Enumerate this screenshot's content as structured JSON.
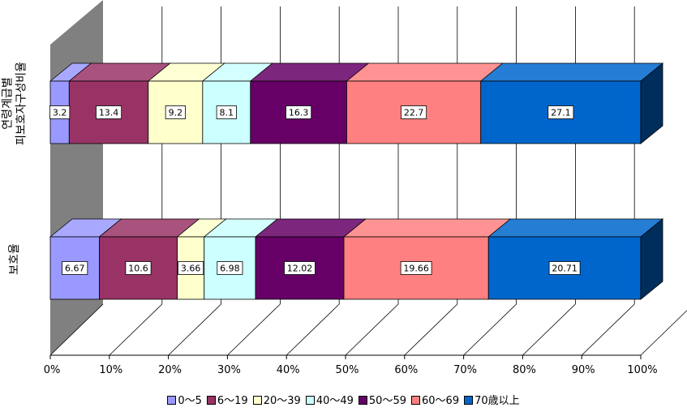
{
  "chart_data": {
    "type": "bar",
    "orientation": "horizontal",
    "stacked": true,
    "percent": true,
    "three_d": true,
    "categories": [
      "연령계급별 피보호자구성비율",
      "보호율"
    ],
    "category_lines": [
      [
        "연령계급별",
        "피보호자구성비율"
      ],
      [
        "보호율"
      ]
    ],
    "series": [
      {
        "name": "0～5",
        "color": "#9999ff",
        "values": [
          3.2,
          6.67
        ]
      },
      {
        "name": "6～19",
        "color": "#993366",
        "values": [
          13.4,
          10.6
        ]
      },
      {
        "name": "20～39",
        "color": "#ffffcc",
        "values": [
          9.2,
          3.66
        ]
      },
      {
        "name": "40～49",
        "color": "#ccffff",
        "values": [
          8.1,
          6.98
        ]
      },
      {
        "name": "50～59",
        "color": "#660066",
        "values": [
          16.3,
          12.02
        ]
      },
      {
        "name": "60～69",
        "color": "#ff8080",
        "values": [
          22.7,
          19.66
        ]
      },
      {
        "name": "70歳以上",
        "color": "#0066cc",
        "values": [
          27.1,
          20.71
        ]
      }
    ],
    "data_labels": [
      [
        "3.2",
        "13.4",
        "9.2",
        "8.1",
        "16.3",
        "22.7",
        "27.1"
      ],
      [
        "6.67",
        "10.6",
        "3.66",
        "6.98",
        "12.02",
        "19.66",
        "20.71"
      ]
    ],
    "xticks": [
      "0%",
      "10%",
      "20%",
      "30%",
      "40%",
      "50%",
      "60%",
      "70%",
      "80%",
      "90%",
      "100%"
    ],
    "xlim": [
      0,
      100
    ],
    "grid": true,
    "legend_position": "bottom",
    "colors": {
      "wall": "#808080",
      "grid": "#000000"
    }
  }
}
